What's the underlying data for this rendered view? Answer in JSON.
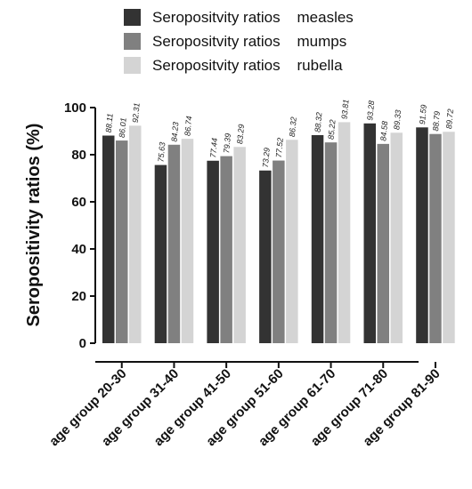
{
  "chart_data": {
    "type": "bar",
    "title": "",
    "xlabel": "",
    "ylabel": "Seropositivity ratios (%)",
    "ylim": [
      0,
      100
    ],
    "yticks": [
      0,
      20,
      40,
      60,
      80,
      100
    ],
    "grid": false,
    "legend_position": "top",
    "categories": [
      "age group 20-30",
      "age group 31-40",
      "age group 41-50",
      "age group 51-60",
      "age group 61-70",
      "age group 71-80",
      "age group 81-90"
    ],
    "series": [
      {
        "name": "Seropositvity ratios    measles",
        "color": "#333333",
        "values": [
          88.11,
          75.63,
          77.44,
          73.29,
          88.32,
          93.28,
          91.59
        ],
        "labels": [
          "88.11",
          "75.63",
          "77.44",
          "73.29",
          "88.32",
          "93.28",
          "91.59"
        ]
      },
      {
        "name": "Seropositvity ratios    mumps",
        "color": "#808080",
        "values": [
          86.01,
          84.23,
          79.39,
          77.52,
          85.22,
          84.58,
          88.79
        ],
        "labels": [
          "86.01",
          "84.23",
          "79.39",
          "77.52",
          "85.22",
          "84.58",
          "88.79"
        ]
      },
      {
        "name": "Seropositvity ratios    rubella",
        "color": "#d4d4d4",
        "values": [
          92.31,
          86.74,
          83.29,
          86.32,
          93.81,
          89.33,
          89.72
        ],
        "labels": [
          "92.31",
          "86.74",
          "83.29",
          "86.32",
          "93.81",
          "89.33",
          "89.72"
        ]
      }
    ]
  }
}
